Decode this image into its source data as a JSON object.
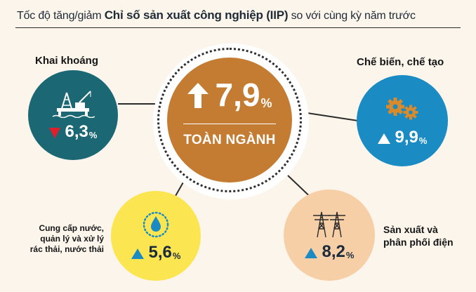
{
  "header": {
    "title_lead": "Tốc độ tăng/giảm",
    "title_strong": "Chỉ số sản xuất công nghiệp (IIP)",
    "title_tail": "so với cùng kỳ năm trước"
  },
  "center": {
    "value": "7,9",
    "unit": "%",
    "label": "TOÀN NGÀNH",
    "direction": "up",
    "color": "#c47c33"
  },
  "sectors": [
    {
      "name": "Khai khoáng",
      "value": "6,3",
      "unit": "%",
      "direction": "down",
      "icon": "oil-rig-icon",
      "color": "#1b6874"
    },
    {
      "name": "Chế biến, chế tạo",
      "value": "9,9",
      "unit": "%",
      "direction": "up",
      "icon": "gears-icon",
      "color": "#1a8bc3"
    },
    {
      "name": "Cung cấp nước, quản lý và xử lý rác thải, nước thải",
      "name_lines": [
        "Cung cấp nước,",
        "quản lý và xử lý",
        "rác thải, nước thải"
      ],
      "value": "5,6",
      "unit": "%",
      "direction": "up",
      "icon": "water-drop-icon",
      "color": "#fbe651"
    },
    {
      "name": "Sản xuất và phân phối điện",
      "name_lines": [
        "Sản xuất và",
        "phân phối điện"
      ],
      "value": "8,2",
      "unit": "%",
      "direction": "up",
      "icon": "power-tower-icon",
      "color": "#f7cfa6"
    }
  ]
}
